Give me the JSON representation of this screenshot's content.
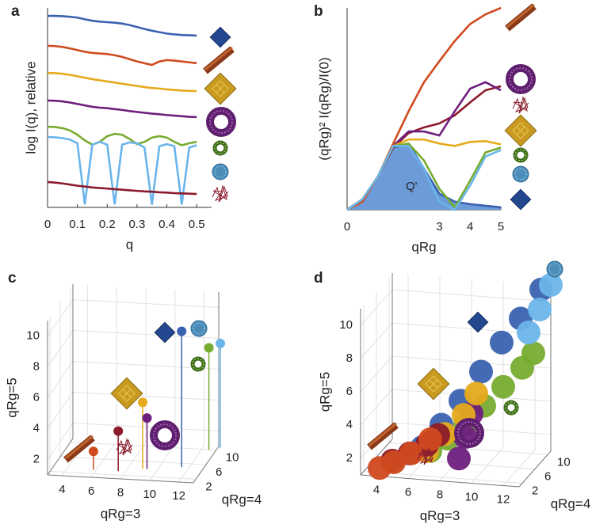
{
  "chart_data": [
    {
      "type": "line",
      "panel": "a",
      "xlabel": "q",
      "ylabel": "log I(q), relative",
      "xlim": [
        0,
        0.55
      ],
      "xticks": [
        0,
        0.1,
        0.2,
        0.3,
        0.4,
        0.5
      ],
      "ylim": [
        0,
        7
      ],
      "x": [
        0,
        0.025,
        0.05,
        0.075,
        0.1,
        0.125,
        0.15,
        0.175,
        0.2,
        0.225,
        0.25,
        0.275,
        0.3,
        0.325,
        0.35,
        0.375,
        0.4,
        0.425,
        0.45,
        0.475,
        0.5
      ],
      "series": [
        {
          "color": "#3a62b0",
          "values": [
            6.72,
            6.72,
            6.71,
            6.69,
            6.66,
            6.6,
            6.55,
            6.52,
            6.5,
            6.48,
            6.45,
            6.4,
            6.33,
            6.26,
            6.2,
            6.15,
            6.1,
            6.07,
            6.05,
            6.04,
            6.03
          ]
        },
        {
          "color": "#d04a1f",
          "values": [
            5.67,
            5.66,
            5.63,
            5.58,
            5.52,
            5.46,
            5.42,
            5.4,
            5.38,
            5.34,
            5.28,
            5.2,
            5.12,
            5.06,
            5.0,
            5.12,
            5.17,
            5.15,
            5.12,
            5.09,
            5.06
          ]
        },
        {
          "color": "#e6aa1c",
          "values": [
            4.72,
            4.71,
            4.69,
            4.65,
            4.6,
            4.55,
            4.5,
            4.46,
            4.42,
            4.38,
            4.34,
            4.3,
            4.26,
            4.22,
            4.19,
            4.17,
            4.14,
            4.12,
            4.1,
            4.09,
            4.08
          ]
        },
        {
          "color": "#6e1f7e",
          "values": [
            3.75,
            3.74,
            3.72,
            3.68,
            3.63,
            3.58,
            3.53,
            3.5,
            3.48,
            3.45,
            3.42,
            3.38,
            3.35,
            3.32,
            3.29,
            3.27,
            3.24,
            3.22,
            3.2,
            3.18,
            3.17
          ]
        },
        {
          "color": "#77ac30",
          "values": [
            2.83,
            2.82,
            2.78,
            2.7,
            2.55,
            2.35,
            2.2,
            2.3,
            2.5,
            2.58,
            2.55,
            2.4,
            2.22,
            2.3,
            2.45,
            2.5,
            2.45,
            2.3,
            2.18,
            2.25,
            2.3
          ]
        },
        {
          "color": "#6bb5ea",
          "values": [
            2.47,
            2.46,
            2.43,
            2.38,
            2.25,
            0.1,
            2.2,
            2.3,
            2.2,
            0.1,
            2.2,
            2.28,
            2.25,
            2.1,
            0.1,
            2.15,
            2.22,
            2.15,
            0.1,
            2.1,
            2.18
          ]
        },
        {
          "color": "#8b1a2b",
          "values": [
            0.89,
            0.87,
            0.84,
            0.8,
            0.76,
            0.73,
            0.7,
            0.68,
            0.66,
            0.64,
            0.62,
            0.6,
            0.58,
            0.56,
            0.55,
            0.53,
            0.52,
            0.5,
            0.49,
            0.48,
            0.47
          ]
        }
      ]
    },
    {
      "type": "line",
      "panel": "b",
      "xlabel": "qRg",
      "ylabel": "(qRg)² I(qRg)/I(0)",
      "annotation": "Q'",
      "xlim": [
        0,
        5
      ],
      "xticks": [
        0,
        3,
        4,
        5
      ],
      "ylim": [
        0,
        2.5
      ],
      "x": [
        0,
        0.5,
        1,
        1.5,
        2,
        2.5,
        3,
        3.5,
        4,
        4.5,
        5
      ],
      "series": [
        {
          "color": "#3a62b0",
          "fill": "#6d9bd8",
          "values": [
            0,
            0.13,
            0.41,
            0.77,
            0.82,
            0.51,
            0.2,
            0.1,
            0.07,
            0.05,
            0.03
          ]
        },
        {
          "color": "#d04a1f",
          "values": [
            0,
            0.1,
            0.41,
            0.82,
            1.22,
            1.58,
            1.84,
            2.09,
            2.3,
            2.42,
            2.5
          ]
        },
        {
          "color": "#8b1a2b",
          "values": [
            0,
            0.13,
            0.41,
            0.77,
            0.95,
            1.02,
            1.07,
            1.17,
            1.33,
            1.48,
            1.53
          ]
        },
        {
          "color": "#6e1f7e",
          "values": [
            0,
            0.13,
            0.41,
            0.79,
            0.97,
            0.97,
            0.92,
            1.22,
            1.5,
            1.58,
            1.48
          ]
        },
        {
          "color": "#e6aa1c",
          "values": [
            0,
            0.13,
            0.41,
            0.79,
            0.87,
            0.87,
            0.82,
            0.79,
            0.84,
            0.85,
            0.81
          ]
        },
        {
          "color": "#77ac30",
          "values": [
            0,
            0.13,
            0.41,
            0.79,
            0.82,
            0.61,
            0.26,
            0.03,
            0.36,
            0.71,
            0.77
          ]
        },
        {
          "color": "#6bb5ea",
          "values": [
            0,
            0.13,
            0.41,
            0.79,
            0.79,
            0.51,
            0.1,
            0,
            0.3,
            0.66,
            0.74
          ]
        }
      ]
    },
    {
      "type": "stem3d",
      "panel": "c",
      "xlabel": "qRg=3",
      "ylabel": "qRg=4",
      "zlabel": "qRg=5",
      "xlim": [
        3,
        13
      ],
      "xticks": [
        4,
        6,
        8,
        10,
        12
      ],
      "ylim": [
        1,
        11
      ],
      "yticks": [
        2,
        6,
        10
      ],
      "zlim": [
        1,
        11
      ],
      "zticks": [
        2,
        4,
        6,
        8,
        10
      ],
      "series": [
        {
          "color": "#d04a1f",
          "x": [
            5.8
          ],
          "y": [
            3
          ],
          "z": [
            2.2
          ]
        },
        {
          "color": "#8b1a2b",
          "x": [
            7.5
          ],
          "y": [
            3
          ],
          "z": [
            3.6
          ]
        },
        {
          "color": "#e6aa1c",
          "x": [
            9
          ],
          "y": [
            4
          ],
          "z": [
            5.3
          ]
        },
        {
          "color": "#6e1f7e",
          "x": [
            9.3
          ],
          "y": [
            4
          ],
          "z": [
            4.3
          ]
        },
        {
          "color": "#3a62b0",
          "x": [
            11.5
          ],
          "y": [
            5
          ],
          "z": [
            9.8
          ]
        },
        {
          "color": "#77ac30",
          "x": [
            12.5
          ],
          "y": [
            10
          ],
          "z": [
            7.6
          ]
        },
        {
          "color": "#6bb5ea",
          "x": [
            13.2
          ],
          "y": [
            10.5
          ],
          "z": [
            7.8
          ]
        }
      ]
    },
    {
      "type": "scatter3d",
      "panel": "d",
      "xlabel": "qRg=3",
      "ylabel": "qRg=4",
      "zlabel": "qRg=5",
      "xlim": [
        3,
        13
      ],
      "xticks": [
        4,
        6,
        8,
        10,
        12
      ],
      "ylim": [
        1,
        11
      ],
      "yticks": [
        2,
        6,
        10
      ],
      "zlim": [
        1,
        11
      ],
      "zticks": [
        2,
        4,
        6,
        8,
        10
      ],
      "series": [
        {
          "color": "#77ac30",
          "x": [
            7,
            8,
            9,
            10,
            11,
            12,
            12.5
          ],
          "y": [
            3,
            3.5,
            4,
            5,
            6,
            7,
            8
          ],
          "z": [
            2.3,
            3,
            3.8,
            4.8,
            5.8,
            6.8,
            7.5
          ]
        },
        {
          "color": "#3a62b0",
          "x": [
            6.5,
            7.5,
            8.5,
            9.5,
            10.5,
            11.5,
            12.5
          ],
          "y": [
            3,
            4,
            5,
            6.5,
            8,
            9,
            10.5
          ],
          "z": [
            2.5,
            3.7,
            5,
            6.5,
            8,
            9.3,
            10.8
          ]
        },
        {
          "color": "#6bb5ea",
          "x": [
            12,
            12.5,
            13
          ],
          "y": [
            9,
            10,
            11
          ],
          "z": [
            8.5,
            9.7,
            11
          ]
        },
        {
          "color": "#6e1f7e",
          "x": [
            9,
            9.2,
            9.4
          ],
          "y": [
            2,
            3,
            4
          ],
          "z": [
            2.2,
            3.3,
            4.5
          ]
        },
        {
          "color": "#e6aa1c",
          "x": [
            7,
            8,
            9,
            9.5
          ],
          "y": [
            2,
            2.5,
            3.5,
            5
          ],
          "z": [
            2.5,
            3.5,
            4.5,
            5.5
          ]
        },
        {
          "color": "#8b1a2b",
          "x": [
            5,
            6,
            7,
            7.5
          ],
          "y": [
            1,
            1.5,
            2,
            3
          ],
          "z": [
            2,
            2.4,
            2.9,
            3.3
          ]
        },
        {
          "color": "#d04a1f",
          "x": [
            4.2,
            5,
            6,
            7
          ],
          "y": [
            1,
            1.5,
            2,
            3
          ],
          "z": [
            1.5,
            1.8,
            2.3,
            3
          ]
        }
      ]
    }
  ]
}
